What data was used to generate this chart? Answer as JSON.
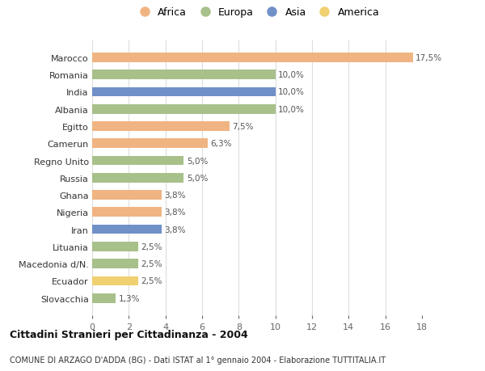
{
  "countries": [
    "Marocco",
    "Romania",
    "India",
    "Albania",
    "Egitto",
    "Camerun",
    "Regno Unito",
    "Russia",
    "Ghana",
    "Nigeria",
    "Iran",
    "Lituania",
    "Macedonia d/N.",
    "Ecuador",
    "Slovacchia"
  ],
  "values": [
    17.5,
    10.0,
    10.0,
    10.0,
    7.5,
    6.3,
    5.0,
    5.0,
    3.8,
    3.8,
    3.8,
    2.5,
    2.5,
    2.5,
    1.3
  ],
  "labels": [
    "17,5%",
    "10,0%",
    "10,0%",
    "10,0%",
    "7,5%",
    "6,3%",
    "5,0%",
    "5,0%",
    "3,8%",
    "3,8%",
    "3,8%",
    "2,5%",
    "2,5%",
    "2,5%",
    "1,3%"
  ],
  "continents": [
    "Africa",
    "Europa",
    "Asia",
    "Europa",
    "Africa",
    "Africa",
    "Europa",
    "Europa",
    "Africa",
    "Africa",
    "Asia",
    "Europa",
    "Europa",
    "America",
    "Europa"
  ],
  "colors": {
    "Africa": "#F0B482",
    "Europa": "#A8C08A",
    "Asia": "#7090C8",
    "America": "#F0D070"
  },
  "legend_order": [
    "Africa",
    "Europa",
    "Asia",
    "America"
  ],
  "title": "Cittadini Stranieri per Cittadinanza - 2004",
  "subtitle": "COMUNE DI ARZAGO D'ADDA (BG) - Dati ISTAT al 1° gennaio 2004 - Elaborazione TUTTITALIA.IT",
  "xlim": [
    0,
    18
  ],
  "xticks": [
    0,
    2,
    4,
    6,
    8,
    10,
    12,
    14,
    16,
    18
  ],
  "background_color": "#ffffff",
  "grid_color": "#dddddd",
  "bar_height": 0.55
}
